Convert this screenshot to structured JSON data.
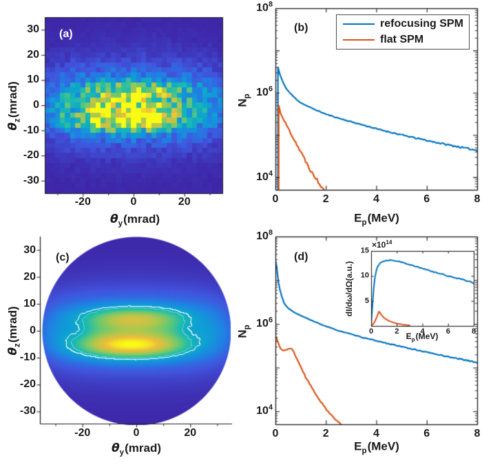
{
  "colors": {
    "axis": "#1a1a1a",
    "text": "#1a1a1a",
    "background": "#ffffff",
    "panel_label_a": "#ffffff",
    "legend_border": "#4d4d4d",
    "blue": "#0072BD",
    "orange": "#D95319",
    "contour": "#ffffff"
  },
  "colormap": {
    "name": "parula",
    "stops": [
      "#3e26a8",
      "#4055de",
      "#2081e3",
      "#0e9fd5",
      "#18bab2",
      "#62c876",
      "#afc74d",
      "#edbd3c",
      "#f9fb15"
    ]
  },
  "chart_data": [
    {
      "id": "a",
      "type": "heatmap",
      "panel_label": "(a)",
      "xlabel": {
        "sym": "θ",
        "sub": "y",
        "unit": "(mrad)"
      },
      "ylabel": {
        "sym": "θ",
        "sub": "z",
        "unit": "(mrad)"
      },
      "xlim": [
        -35,
        35
      ],
      "ylim": [
        -35,
        35
      ],
      "xticks": {
        "values": [
          -20,
          0,
          20
        ],
        "labels": [
          "-20",
          "0",
          "20"
        ],
        "minor": [
          -30,
          -10,
          10,
          30
        ]
      },
      "yticks": {
        "values": [
          30,
          20,
          10,
          0,
          -10,
          -20,
          -30
        ],
        "labels": [
          "30",
          "20",
          "10",
          "0",
          "-10",
          "-20",
          "-30"
        ]
      },
      "bins": 35,
      "noise_seed": 987654,
      "intensity_scale": 1.15,
      "field_terms": [
        {
          "amp": 0.34,
          "y0": 0,
          "sy": 36,
          "py": 6,
          "z0": 0,
          "sz": 12,
          "pz": 1.7
        },
        {
          "amp": 0.08,
          "y0": 0,
          "sy": 40,
          "py": 2,
          "z0": 0,
          "sz": 20,
          "pz": 2
        },
        {
          "amp": 0.46,
          "y0": -1,
          "sy": 18,
          "py": 2.2,
          "z0": 4.8,
          "sz": 4.4,
          "pz": 2
        },
        {
          "amp": 0.66,
          "y0": -2,
          "sy": 20,
          "py": 2.2,
          "z0": -5.4,
          "sz": 4.9,
          "pz": 2
        },
        {
          "amp": -0.07,
          "y0": 20,
          "sy": 5,
          "py": 2,
          "z0": 0,
          "sz": 4,
          "pz": 2
        },
        {
          "amp": -0.07,
          "y0": -22,
          "sy": 5,
          "py": 2,
          "z0": 0,
          "sz": 4,
          "pz": 2
        }
      ]
    },
    {
      "id": "b",
      "type": "line",
      "log_y": true,
      "panel_label": "(b)",
      "xlabel": {
        "sym": "E",
        "sub": "p",
        "unit": "(MeV)"
      },
      "ylabel": {
        "sym": "N",
        "sub": "p"
      },
      "xlim": [
        0,
        8
      ],
      "ylim_log10": [
        3.7,
        8
      ],
      "xticks": {
        "values": [
          0,
          2,
          4,
          6,
          8
        ],
        "labels": [
          "0",
          "2",
          "4",
          "6",
          "8"
        ]
      },
      "yticks": {
        "base": "10",
        "exps": [
          "8",
          "6",
          "4"
        ],
        "exp_values": [
          8,
          6,
          4
        ]
      },
      "legend": {
        "position": "top-right",
        "entries": [
          {
            "label": "refocusing SPM",
            "color": "#0072BD"
          },
          {
            "label": "flat SPM",
            "color": "#D95319"
          }
        ]
      },
      "series": [
        {
          "name": "refocusing SPM",
          "color": "#0072BD",
          "noise": 0.02,
          "seed": 11,
          "points": [
            [
              0.1,
              5000
            ],
            [
              0.1,
              4000000
            ],
            [
              0.14,
              3300000
            ],
            [
              0.18,
              2700000
            ],
            [
              0.3,
              1750000
            ],
            [
              0.45,
              1200000
            ],
            [
              0.6,
              950000
            ],
            [
              0.8,
              720000
            ],
            [
              1.0,
              580000
            ],
            [
              1.3,
              470000
            ],
            [
              1.6,
              390000
            ],
            [
              2.0,
              310000
            ],
            [
              2.5,
              250000
            ],
            [
              3.0,
              205000
            ],
            [
              3.5,
              170000
            ],
            [
              4.0,
              140000
            ],
            [
              4.5,
              118000
            ],
            [
              5.0,
              100000
            ],
            [
              5.5,
              86000
            ],
            [
              6.0,
              74000
            ],
            [
              6.5,
              64000
            ],
            [
              7.0,
              56000
            ],
            [
              7.5,
              49000
            ],
            [
              8.0,
              43000
            ]
          ]
        },
        {
          "name": "flat SPM",
          "color": "#D95319",
          "noise": 0.055,
          "seed": 22,
          "points": [
            [
              0.13,
              5000
            ],
            [
              0.13,
              500000
            ],
            [
              0.2,
              340000
            ],
            [
              0.35,
              215000
            ],
            [
              0.5,
              145000
            ],
            [
              0.65,
              100000
            ],
            [
              0.8,
              68000
            ],
            [
              1.0,
              40000
            ],
            [
              1.2,
              24000
            ],
            [
              1.4,
              14500
            ],
            [
              1.6,
              9500
            ],
            [
              1.8,
              6500
            ],
            [
              1.95,
              5200
            ]
          ]
        }
      ]
    },
    {
      "id": "c",
      "type": "heatmap_smooth",
      "panel_label": "(c)",
      "xlabel": {
        "sym": "θ",
        "sub": "y",
        "unit": "(mrad)"
      },
      "ylabel": {
        "sym": "θ",
        "sub": "z",
        "unit": "(mrad)"
      },
      "xlim": [
        -35,
        35
      ],
      "ylim": [
        -35,
        35
      ],
      "xticks": {
        "values": [
          -20,
          0,
          20
        ],
        "labels": [
          "-20",
          "0",
          "20"
        ],
        "minor": [
          -30,
          -10,
          10,
          30
        ]
      },
      "yticks": {
        "values": [
          30,
          20,
          10,
          0,
          -10,
          -20,
          -30
        ],
        "labels": [
          "30",
          "20",
          "10",
          "0",
          "-10",
          "-20",
          "-30"
        ]
      },
      "clip": "circle",
      "clip_radius_mrad": 35,
      "contour_level": 0.42,
      "faint_contour_levels": [
        0.48
      ],
      "contour_color": "#ffffff",
      "field_terms": [
        {
          "amp": 0.34,
          "y0": 0,
          "sy": 36,
          "py": 6,
          "z0": 0,
          "sz": 12,
          "pz": 1.7
        },
        {
          "amp": 0.08,
          "y0": 0,
          "sy": 40,
          "py": 2,
          "z0": 0,
          "sz": 20,
          "pz": 2
        },
        {
          "amp": 0.46,
          "y0": -1,
          "sy": 18,
          "py": 2.2,
          "z0": 4.8,
          "sz": 4.4,
          "pz": 2
        },
        {
          "amp": 0.66,
          "y0": -2,
          "sy": 20,
          "py": 2.2,
          "z0": -5.4,
          "sz": 4.9,
          "pz": 2
        },
        {
          "amp": -0.07,
          "y0": 20,
          "sy": 5,
          "py": 2,
          "z0": 0,
          "sz": 4,
          "pz": 2
        },
        {
          "amp": -0.07,
          "y0": -22,
          "sy": 5,
          "py": 2,
          "z0": 0,
          "sz": 4,
          "pz": 2
        }
      ]
    },
    {
      "id": "d",
      "type": "line",
      "log_y": true,
      "panel_label": "(d)",
      "xlabel": {
        "sym": "E",
        "sub": "p",
        "unit": "(MeV)"
      },
      "ylabel": {
        "sym": "N",
        "sub": "p"
      },
      "xlim": [
        0,
        8
      ],
      "ylim_log10": [
        3.7,
        8
      ],
      "xticks": {
        "values": [
          0,
          2,
          4,
          6,
          8
        ],
        "labels": [
          "0",
          "2",
          "4",
          "6",
          "8"
        ]
      },
      "yticks": {
        "base": "10",
        "exps": [
          "8",
          "6",
          "4"
        ],
        "exp_values": [
          8,
          6,
          4
        ]
      },
      "series": [
        {
          "name": "refocusing SPM",
          "color": "#0072BD",
          "noise": 0.012,
          "seed": 33,
          "points": [
            [
              0.02,
              26000000
            ],
            [
              0.05,
              20000000
            ],
            [
              0.08,
              14000000
            ],
            [
              0.12,
              9000000
            ],
            [
              0.18,
              6000000
            ],
            [
              0.25,
              4300000
            ],
            [
              0.35,
              2900000
            ],
            [
              0.5,
              2300000
            ],
            [
              0.7,
              1900000
            ],
            [
              1.0,
              1550000
            ],
            [
              1.5,
              1150000
            ],
            [
              2.0,
              880000
            ],
            [
              2.5,
              700000
            ],
            [
              3.0,
              580000
            ],
            [
              3.5,
              480000
            ],
            [
              4.0,
              410000
            ],
            [
              4.5,
              350000
            ],
            [
              5.0,
              300000
            ],
            [
              5.5,
              260000
            ],
            [
              6.0,
              225000
            ],
            [
              6.5,
              195000
            ],
            [
              7.0,
              170000
            ],
            [
              7.5,
              150000
            ],
            [
              8.0,
              130000
            ]
          ]
        },
        {
          "name": "flat SPM",
          "color": "#D95319",
          "noise": 0.025,
          "seed": 44,
          "points": [
            [
              0.02,
              500000
            ],
            [
              0.1,
              390000
            ],
            [
              0.2,
              270000
            ],
            [
              0.3,
              245000
            ],
            [
              0.45,
              255000
            ],
            [
              0.6,
              280000
            ],
            [
              0.7,
              240000
            ],
            [
              0.85,
              160000
            ],
            [
              1.0,
              105000
            ],
            [
              1.2,
              60000
            ],
            [
              1.4,
              38000
            ],
            [
              1.7,
              20000
            ],
            [
              2.0,
              11500
            ],
            [
              2.3,
              7000
            ],
            [
              2.6,
              5000
            ],
            [
              2.8,
              4200
            ]
          ]
        }
      ],
      "inset": {
        "type": "line",
        "multiplier": {
          "b": "×10",
          "e": "14"
        },
        "ylabel_text": "dI/dω/dΩ(a.u.)",
        "xlabel": {
          "sym": "E",
          "sub": "p",
          "unit": "(MeV)"
        },
        "xlim": [
          0,
          8
        ],
        "ylim": [
          0,
          15
        ],
        "xticks": {
          "values": [
            0,
            2,
            4,
            6,
            8
          ],
          "labels": [
            "0",
            "2",
            "4",
            "6",
            "8"
          ]
        },
        "yticks": {
          "values": [
            5,
            10,
            15
          ],
          "labels": [
            "5",
            "10",
            "15"
          ]
        },
        "series": [
          {
            "name": "refocusing SPM",
            "color": "#0072BD",
            "noise": 0.12,
            "seed": 55,
            "points": [
              [
                0,
                0.2
              ],
              [
                0.1,
                4
              ],
              [
                0.2,
                7.5
              ],
              [
                0.3,
                9.7
              ],
              [
                0.4,
                11
              ],
              [
                0.5,
                11.9
              ],
              [
                0.7,
                12.6
              ],
              [
                0.9,
                12.9
              ],
              [
                1.2,
                13.1
              ],
              [
                1.5,
                13.2
              ],
              [
                1.8,
                13.1
              ],
              [
                2.2,
                12.9
              ],
              [
                2.6,
                12.6
              ],
              [
                3.0,
                12.3
              ],
              [
                3.5,
                11.9
              ],
              [
                4.0,
                11.5
              ],
              [
                4.5,
                11.1
              ],
              [
                5.0,
                10.7
              ],
              [
                5.5,
                10.4
              ],
              [
                6.0,
                10.0
              ],
              [
                6.5,
                9.7
              ],
              [
                7.0,
                9.4
              ],
              [
                7.5,
                9.0
              ],
              [
                8.0,
                8.6
              ]
            ]
          },
          {
            "name": "flat SPM",
            "color": "#D95319",
            "noise": 0.03,
            "seed": 66,
            "points": [
              [
                0.02,
                0.05
              ],
              [
                0.2,
                0.5
              ],
              [
                0.4,
                1.5
              ],
              [
                0.55,
                2.5
              ],
              [
                0.62,
                2.9
              ],
              [
                0.72,
                2.5
              ],
              [
                0.9,
                1.9
              ],
              [
                1.1,
                1.45
              ],
              [
                1.4,
                1.0
              ],
              [
                1.7,
                0.7
              ],
              [
                2.0,
                0.5
              ],
              [
                2.4,
                0.3
              ],
              [
                2.8,
                0.17
              ],
              [
                3.0,
                0.12
              ]
            ]
          }
        ]
      }
    }
  ]
}
